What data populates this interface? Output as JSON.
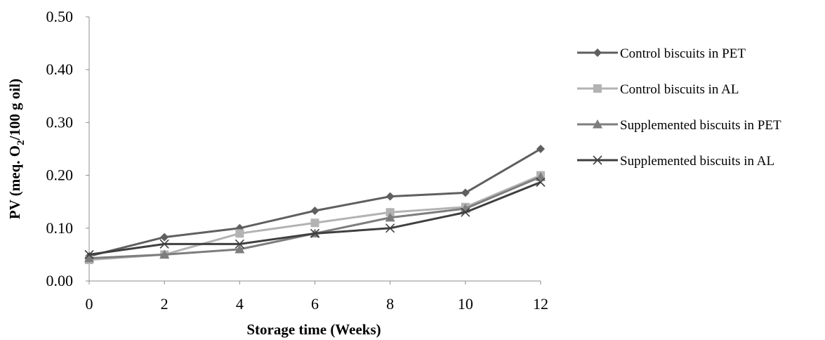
{
  "chart_data": {
    "type": "line",
    "xlabel": "Storage time (Weeks)",
    "ylabel_main": "PV (meq. O",
    "ylabel_sub": "2",
    "ylabel_tail": "/100 g oil)",
    "x": [
      0,
      2,
      4,
      6,
      8,
      10,
      12
    ],
    "x_tick_labels": [
      "0",
      "2",
      "4",
      "6",
      "8",
      "10",
      "12"
    ],
    "y_tick_labels": [
      "0.00",
      "0.10",
      "0.20",
      "0.30",
      "0.40",
      "0.50"
    ],
    "y_ticks": [
      0,
      0.1,
      0.2,
      0.3,
      0.4,
      0.5
    ],
    "ylim": [
      0,
      0.5
    ],
    "grid": false,
    "legend_position": "right",
    "series": [
      {
        "name": "Control biscuits in PET",
        "marker": "diamond",
        "color": "#5f5f5f",
        "values": [
          0.047,
          0.083,
          0.1,
          0.133,
          0.16,
          0.167,
          0.25
        ]
      },
      {
        "name": "Control biscuits in AL",
        "marker": "square",
        "color": "#b3b3b3",
        "values": [
          0.04,
          0.05,
          0.09,
          0.11,
          0.13,
          0.14,
          0.2
        ]
      },
      {
        "name": "Supplemented biscuits in PET",
        "marker": "triangle",
        "color": "#7d7d7d",
        "values": [
          0.043,
          0.05,
          0.06,
          0.09,
          0.12,
          0.137,
          0.197
        ]
      },
      {
        "name": "Supplemented biscuits in AL",
        "marker": "x",
        "color": "#3f3f3f",
        "values": [
          0.05,
          0.07,
          0.07,
          0.09,
          0.1,
          0.13,
          0.187
        ]
      }
    ]
  }
}
